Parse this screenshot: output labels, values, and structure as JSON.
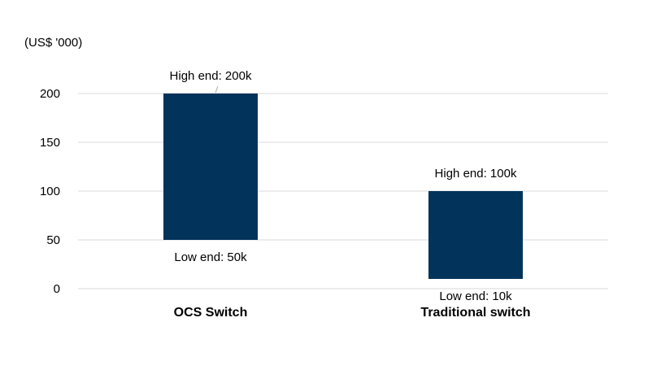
{
  "chart_data": {
    "type": "bar",
    "subtype": "floating-range",
    "unit_label": "(US$ '000)",
    "categories": [
      "OCS Switch",
      "Traditional switch"
    ],
    "series": [
      {
        "low": [
          50,
          10
        ],
        "high": [
          200,
          100
        ]
      }
    ],
    "annotations": [
      {
        "category": "OCS Switch",
        "high_label": "High end: 200k",
        "low_label": "Low end: 50k"
      },
      {
        "category": "Traditional switch",
        "high_label": "High end: 100k",
        "low_label": "Low end: 10k"
      }
    ],
    "y_ticks": [
      "0",
      "50",
      "100",
      "150",
      "200"
    ],
    "ylim": [
      0,
      200
    ],
    "bar_color": "#01335b",
    "grid": true,
    "legend": "none"
  }
}
